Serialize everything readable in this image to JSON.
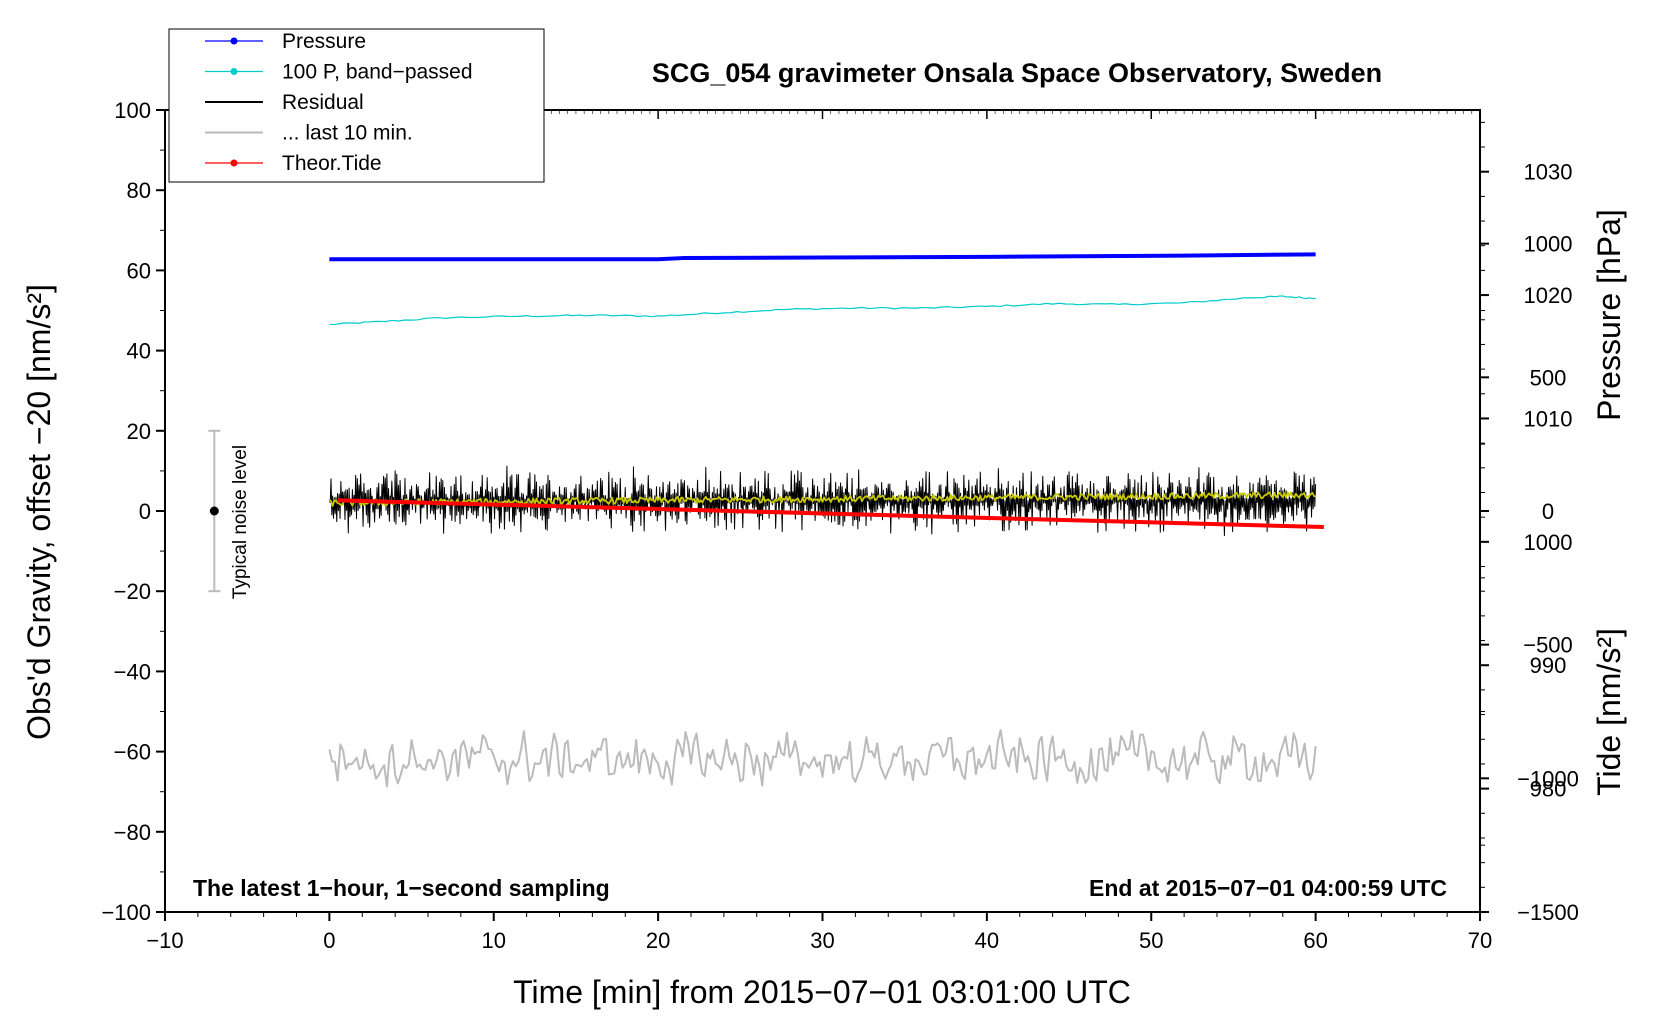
{
  "chart_data": {
    "type": "line",
    "title": "SCG_054 gravimeter Onsala Space Observatory, Sweden",
    "xlabel": "Time [min] from 2015−07−01 03:01:00 UTC",
    "ylabel_left": "Obs'd Gravity, offset −20 [nm/s²]",
    "ylabel_right_top": "Pressure [hPa]",
    "ylabel_right_bottom": "Tide [nm/s²]",
    "xlim": [
      -10,
      70
    ],
    "ylim": [
      -100,
      100
    ],
    "pressure_ylim": [
      970,
      1035
    ],
    "tide_ylim": [
      -1500,
      1500
    ],
    "x_ticks": [
      -10,
      0,
      10,
      20,
      30,
      40,
      50,
      60,
      70
    ],
    "x_tick_labels": [
      "−10",
      "0",
      "10",
      "20",
      "30",
      "40",
      "50",
      "60",
      "70"
    ],
    "y_ticks": [
      -100,
      -80,
      -60,
      -40,
      -20,
      0,
      20,
      40,
      60,
      80,
      100
    ],
    "y_tick_labels": [
      "−100",
      "−80",
      "−60",
      "−40",
      "−20",
      "0",
      "20",
      "40",
      "60",
      "80",
      "100"
    ],
    "pressure_ticks": [
      980,
      990,
      1000,
      1010,
      1020,
      1030
    ],
    "pressure_tick_labels": [
      "980",
      "990",
      "1000",
      "1010",
      "1020",
      "1030"
    ],
    "tide_ticks": [
      -1500,
      -1000,
      -500,
      0,
      500,
      1000
    ],
    "tide_tick_labels": [
      "−1500",
      "−1000",
      "−500",
      "0",
      "500",
      "1000"
    ],
    "grid": false,
    "legend_position": "top-left",
    "legend": [
      {
        "label": "Pressure",
        "color": "#0000ff",
        "style": "line-dot"
      },
      {
        "label": "100 P, band−passed",
        "color": "#00cccc",
        "style": "line-dot"
      },
      {
        "label": "Residual",
        "color": "#000000",
        "style": "line"
      },
      {
        "label": "... last 10 min.",
        "color": "#bbbbbb",
        "style": "line"
      },
      {
        "label": "Theor.Tide",
        "color": "#ff0000",
        "style": "line-dot"
      }
    ],
    "annotations": {
      "bottom_left": "The latest 1−hour, 1−second sampling",
      "bottom_right": "End at 2015−07−01 04:00:59 UTC",
      "noise_label": "Typical noise level"
    },
    "series": [
      {
        "name": "Pressure",
        "color": "#0000ff",
        "axis": "pressure",
        "x": [
          0,
          10,
          20,
          21.5,
          30,
          40,
          52,
          60
        ],
        "y": [
          1022.9,
          1022.9,
          1022.9,
          1023.0,
          1023.05,
          1023.1,
          1023.2,
          1023.3
        ]
      },
      {
        "name": "100 P, band−passed",
        "color": "#00cccc",
        "axis": "left",
        "x": [
          0,
          3,
          7,
          12,
          16,
          20,
          24,
          28,
          32,
          36,
          40,
          44,
          48,
          52,
          56,
          58,
          60
        ],
        "y": [
          46.5,
          47.2,
          48.2,
          48.6,
          48.8,
          48.6,
          49.5,
          50.3,
          50.6,
          50.6,
          51.0,
          51.7,
          51.5,
          51.9,
          53.2,
          53.5,
          53.0
        ]
      },
      {
        "name": "Residual",
        "color": "#000000",
        "axis": "left",
        "mean": 2.5,
        "amplitude": 9,
        "x_range": [
          0,
          60
        ]
      },
      {
        "name": "Residual (smoothed)",
        "color": "#c8c800",
        "axis": "left",
        "x_range": [
          0,
          60
        ],
        "start": 2.0,
        "end": 4.0
      },
      {
        "name": "... last 10 min.",
        "color": "#bbbbbb",
        "axis": "left",
        "mean": -62,
        "amplitude": 5,
        "x_range": [
          0,
          60
        ]
      },
      {
        "name": "Theor.Tide",
        "color": "#ff0000",
        "axis": "tide",
        "x": [
          0.5,
          60.5
        ],
        "y": [
          40,
          -60
        ]
      }
    ],
    "noise_bar": {
      "x": -7,
      "center": 0,
      "low": -20,
      "high": 20
    }
  }
}
